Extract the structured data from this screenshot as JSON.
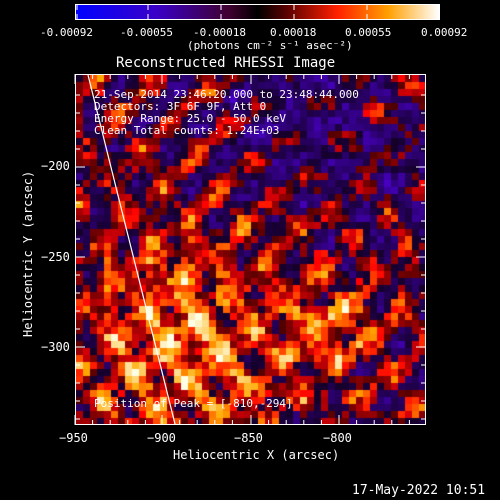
{
  "colorbar": {
    "tick_labels": [
      "-0.00092",
      "-0.00055",
      "-0.00018",
      "0.00018",
      "0.00055",
      "0.00092"
    ],
    "units_label": "(photons cm⁻² s⁻¹ asec⁻²)"
  },
  "plot": {
    "title": "Reconstructed RHESSI Image",
    "info_lines": [
      "21-Sep-2014 23:46:20.000 to 23:48:44.000",
      "Detectors: 3F 6F 9F, Att 0",
      "Energy Range: 25.0 - 50.0 keV",
      "Clean     Total counts: 1.24E+03"
    ],
    "peak_label": "Position of Peak = [-810,-294]",
    "x_axis": {
      "title": "Heliocentric X (arcsec)",
      "ticks": [
        "−950",
        "−900",
        "−850",
        "−800"
      ]
    },
    "y_axis": {
      "title": "Heliocentric Y (arcsec)",
      "ticks": [
        "−200",
        "−250",
        "−300"
      ]
    }
  },
  "timestamp": "17-May-2022 10:51",
  "colors": {
    "background": "#000000",
    "text": "#ffffff",
    "limb_line": "#ffffff"
  }
}
